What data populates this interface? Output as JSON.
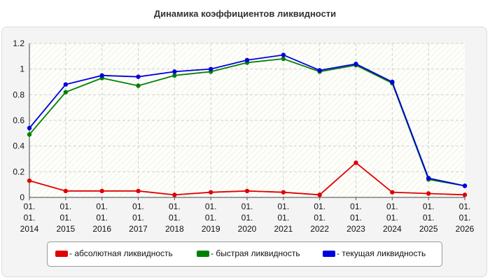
{
  "chart_data": {
    "type": "line",
    "title": "Динамика коэффициентов ликвидности",
    "x": [
      "01.\n01.\n2014",
      "01.\n01.\n2015",
      "01.\n01.\n2016",
      "01.\n01.\n2017",
      "01.\n01.\n2018",
      "01.\n01.\n2019",
      "01.\n01.\n2020",
      "01.\n01.\n2021",
      "01.\n01.\n2022",
      "01.\n01.\n2023",
      "01.\n01.\n2024",
      "01.\n01.\n2025",
      "01.\n01.\n2026"
    ],
    "yticks": [
      "0",
      "0.2",
      "0.4",
      "0.6",
      "0.8",
      "1",
      "1.2"
    ],
    "ylim": [
      0,
      1.2
    ],
    "grid": true,
    "legend_position": "bottom",
    "series": [
      {
        "name": "- абсолютная ликвидность",
        "color": "#e00000",
        "values": [
          0.13,
          0.05,
          0.05,
          0.05,
          0.02,
          0.04,
          0.05,
          0.04,
          0.02,
          0.27,
          0.04,
          0.03,
          0.02
        ]
      },
      {
        "name": "- быстрая ликвидность",
        "color": "#008000",
        "values": [
          0.49,
          0.82,
          0.93,
          0.87,
          0.95,
          0.98,
          1.05,
          1.08,
          0.98,
          1.03,
          0.89,
          0.14,
          0.09
        ]
      },
      {
        "name": "- текущая ликвидность",
        "color": "#0000e0",
        "values": [
          0.54,
          0.88,
          0.95,
          0.94,
          0.98,
          1.0,
          1.07,
          1.11,
          0.99,
          1.04,
          0.9,
          0.15,
          0.09
        ]
      }
    ]
  }
}
